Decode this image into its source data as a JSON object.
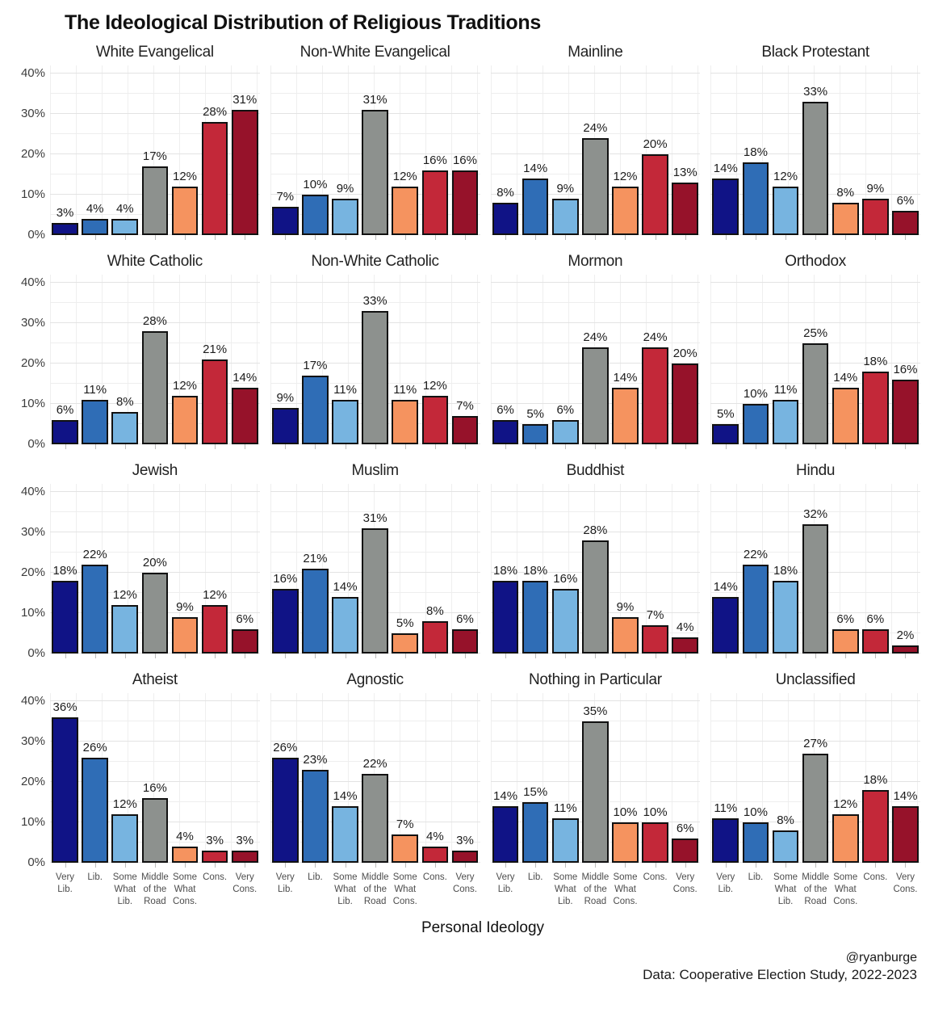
{
  "page": {
    "title": "The Ideological Distribution of Religious Traditions",
    "x_axis_title": "Personal Ideology",
    "credit": "@ryanburge",
    "source": "Data: Cooperative Election Study, 2022-2023"
  },
  "chart_data": {
    "type": "bar",
    "title": "The Ideological Distribution of Religious Traditions",
    "xlabel": "Personal Ideology",
    "ylabel": "",
    "ylim": [
      0,
      42
    ],
    "grid": true,
    "legend": "none",
    "y_ticks": [
      {
        "label": "0%",
        "value": 0
      },
      {
        "label": "10%",
        "value": 10
      },
      {
        "label": "20%",
        "value": 20
      },
      {
        "label": "30%",
        "value": 30
      },
      {
        "label": "40%",
        "value": 40
      }
    ],
    "categories": [
      "Very\nLib.",
      "Lib.",
      "Some\nWhat\nLib.",
      "Middle\nof the\nRoad",
      "Some\nWhat\nCons.",
      "Cons.",
      "Very\nCons."
    ],
    "bar_colors": [
      "#101386",
      "#2f6db6",
      "#77b4e0",
      "#8d918e",
      "#f5935f",
      "#c32839",
      "#96122a"
    ],
    "bar_border_color": "#111111",
    "facets": [
      {
        "name": "White Evangelical",
        "values": [
          3,
          4,
          4,
          17,
          12,
          28,
          31
        ]
      },
      {
        "name": "Non-White Evangelical",
        "values": [
          7,
          10,
          9,
          31,
          12,
          16,
          16
        ]
      },
      {
        "name": "Mainline",
        "values": [
          8,
          14,
          9,
          24,
          12,
          20,
          13
        ]
      },
      {
        "name": "Black Protestant",
        "values": [
          14,
          18,
          12,
          33,
          8,
          9,
          6
        ]
      },
      {
        "name": "White Catholic",
        "values": [
          6,
          11,
          8,
          28,
          12,
          21,
          14
        ]
      },
      {
        "name": "Non-White Catholic",
        "values": [
          9,
          17,
          11,
          33,
          11,
          12,
          7
        ]
      },
      {
        "name": "Mormon",
        "values": [
          6,
          5,
          6,
          24,
          14,
          24,
          20
        ]
      },
      {
        "name": "Orthodox",
        "values": [
          5,
          10,
          11,
          25,
          14,
          18,
          16
        ]
      },
      {
        "name": "Jewish",
        "values": [
          18,
          22,
          12,
          20,
          9,
          12,
          6
        ]
      },
      {
        "name": "Muslim",
        "values": [
          16,
          21,
          14,
          31,
          5,
          8,
          6
        ]
      },
      {
        "name": "Buddhist",
        "values": [
          18,
          18,
          16,
          28,
          9,
          7,
          4
        ]
      },
      {
        "name": "Hindu",
        "values": [
          14,
          22,
          18,
          32,
          6,
          6,
          2
        ]
      },
      {
        "name": "Atheist",
        "values": [
          36,
          26,
          12,
          16,
          4,
          3,
          3
        ]
      },
      {
        "name": "Agnostic",
        "values": [
          26,
          23,
          14,
          22,
          7,
          4,
          3
        ]
      },
      {
        "name": "Nothing in Particular",
        "values": [
          14,
          15,
          11,
          35,
          10,
          10,
          6
        ]
      },
      {
        "name": "Unclassified",
        "values": [
          11,
          10,
          8,
          27,
          12,
          18,
          14
        ]
      }
    ]
  }
}
